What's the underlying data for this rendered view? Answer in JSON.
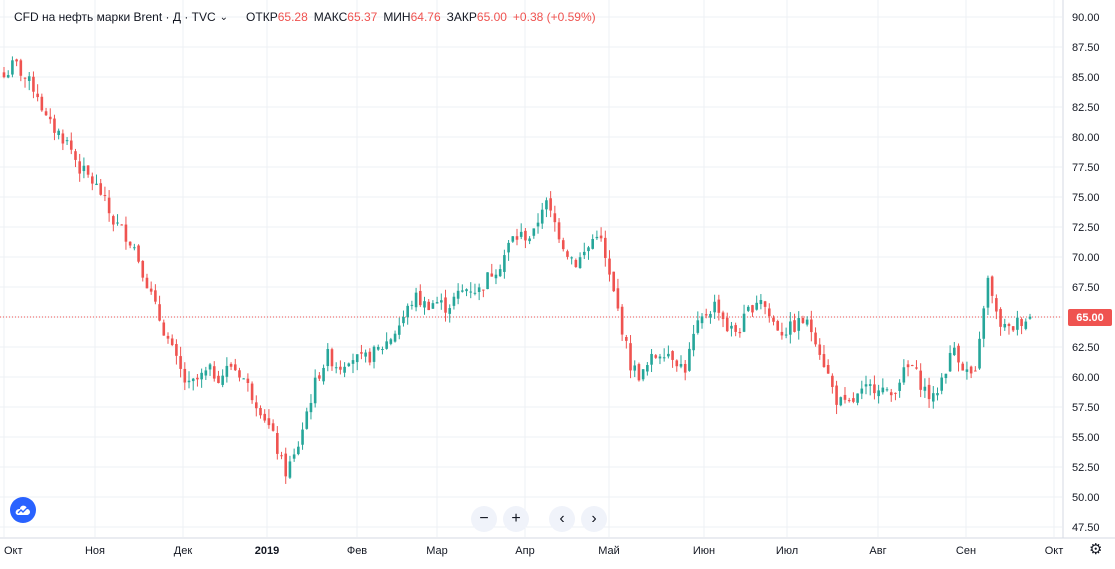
{
  "legend": {
    "symbol": "CFD на нефть марки Brent · Д · TVC",
    "open_label": "ОТКР",
    "open_value": "65.28",
    "high_label": "МАКС",
    "high_value": "65.37",
    "low_label": "МИН",
    "low_value": "64.76",
    "close_label": "ЗАКР",
    "close_value": "65.00",
    "change": "+0.38 (+0.59%)"
  },
  "last_price": "65.00",
  "controls": {
    "zoom_out": "−",
    "zoom_in": "+",
    "scroll_left": "‹",
    "scroll_right": "›"
  },
  "colors": {
    "up": "#26a69a",
    "down": "#ef5350",
    "grid": "#eef0f4",
    "price_line": "#ef5350"
  },
  "chart_data": {
    "type": "candlestick",
    "y_ticks": [
      "90.00",
      "87.50",
      "85.00",
      "82.50",
      "80.00",
      "77.50",
      "75.00",
      "72.50",
      "70.00",
      "67.50",
      "65.00",
      "62.50",
      "60.00",
      "57.50",
      "55.00",
      "52.50",
      "50.00",
      "47.50"
    ],
    "x_ticks": [
      {
        "label": "Окт",
        "bold": false
      },
      {
        "label": "Ноя",
        "bold": false
      },
      {
        "label": "Дек",
        "bold": false
      },
      {
        "label": "2019",
        "bold": true
      },
      {
        "label": "Фев",
        "bold": false
      },
      {
        "label": "Мар",
        "bold": false
      },
      {
        "label": "Апр",
        "bold": false
      },
      {
        "label": "Май",
        "bold": false
      },
      {
        "label": "Июн",
        "bold": false
      },
      {
        "label": "Июл",
        "bold": false
      },
      {
        "label": "Авг",
        "bold": false
      },
      {
        "label": "Сен",
        "bold": false
      },
      {
        "label": "Окт",
        "bold": false
      }
    ],
    "ylim": [
      46.5,
      91
    ],
    "close_path": [
      85.0,
      86.2,
      84.8,
      83.9,
      81.2,
      80.4,
      79.4,
      77.4,
      76.5,
      75.3,
      73.1,
      72.2,
      71.0,
      68.5,
      65.8,
      63.5,
      61.2,
      59.1,
      59.8,
      60.5,
      60.0,
      61.0,
      60.2,
      58.5,
      57.0,
      54.8,
      52.0,
      53.5,
      57.0,
      60.0,
      61.8,
      60.8,
      61.8,
      61.3,
      61.8,
      62.5,
      63.5,
      65.0,
      66.7,
      66.0,
      66.3,
      65.8,
      66.8,
      67.5,
      67.2,
      68.6,
      69.5,
      71.5,
      71.8,
      71.7,
      74.8,
      72.8,
      70.6,
      69.5,
      70.6,
      72.3,
      68.5,
      65.0,
      61.0,
      60.0,
      61.5,
      62.3,
      61.8,
      60.5,
      63.8,
      65.3,
      66.2,
      64.0,
      63.8,
      65.6,
      66.8,
      64.8,
      63.8,
      64.1,
      64.7,
      63.7,
      61.0,
      58.2,
      57.5,
      58.3,
      59.0,
      59.4,
      58.2,
      60.0,
      61.0,
      59.3,
      58.0,
      60.3,
      62.5,
      60.5,
      60.0,
      68.4,
      64.7,
      63.8,
      64.7,
      65.0
    ],
    "title": "",
    "xlabel": "",
    "ylabel": ""
  }
}
